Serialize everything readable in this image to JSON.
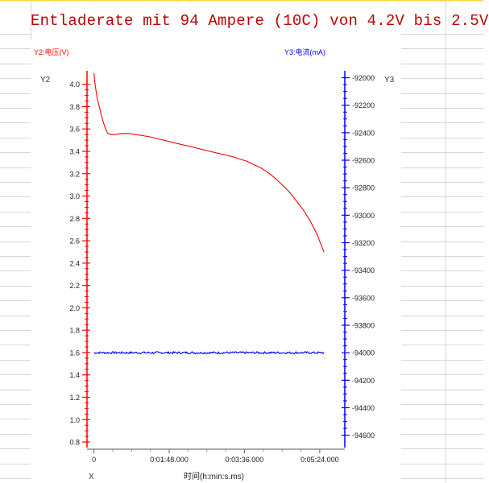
{
  "title": "Entladerate mit 94 Ampere (10C) von 4.2V bis 2.5V",
  "colors": {
    "voltage": "#ff0000",
    "current": "#0000ff",
    "red_axis": "#ff0000",
    "blue_axis": "#0000ff",
    "sheet_grid": "#d6d6d6"
  },
  "chart_data": {
    "type": "line",
    "xlabel": "时间(h:min:s.ms)",
    "x_axis_name": "X",
    "x_ticks": [
      {
        "value": 0,
        "label": "0"
      },
      {
        "value": 108,
        "label": "0:01:48.000"
      },
      {
        "value": 216,
        "label": "0:03:36.000"
      },
      {
        "value": 324,
        "label": "0:05:24.000"
      }
    ],
    "xlim": [
      -10,
      360
    ],
    "y2": {
      "name": "Y2",
      "label": "Y2:电压(V)",
      "ylim": [
        0.75,
        4.12
      ],
      "ticks": [
        0.8,
        1.0,
        1.2,
        1.4,
        1.6,
        1.8,
        2.0,
        2.2,
        2.4,
        2.6,
        2.8,
        3.0,
        3.2,
        3.4,
        3.6,
        3.8,
        4.0
      ]
    },
    "y3": {
      "name": "Y3",
      "label": "Y3:电流(mA)",
      "ylim": [
        -94690,
        -91950
      ],
      "ticks": [
        -92000,
        -92200,
        -92400,
        -92600,
        -92800,
        -93000,
        -93200,
        -93400,
        -93600,
        -93800,
        -94000,
        -94200,
        -94400,
        -94600
      ]
    },
    "series": [
      {
        "name": "Y2:电压(V)",
        "axis": "y2",
        "x": [
          0,
          1,
          2,
          4,
          6,
          8,
          10,
          12,
          15,
          18,
          20,
          25,
          30,
          40,
          50,
          60,
          70,
          80,
          100,
          120,
          140,
          160,
          180,
          200,
          220,
          240,
          250,
          260,
          270,
          280,
          290,
          300,
          310,
          320,
          325,
          330
        ],
        "values": [
          4.1,
          4.03,
          3.98,
          3.9,
          3.84,
          3.79,
          3.74,
          3.69,
          3.63,
          3.58,
          3.56,
          3.55,
          3.55,
          3.56,
          3.56,
          3.55,
          3.54,
          3.53,
          3.5,
          3.47,
          3.44,
          3.41,
          3.38,
          3.35,
          3.31,
          3.25,
          3.21,
          3.16,
          3.1,
          3.04,
          2.96,
          2.88,
          2.78,
          2.66,
          2.58,
          2.5
        ]
      },
      {
        "name": "Y3:电流(mA)",
        "axis": "y3",
        "x": [
          0,
          330
        ],
        "values": [
          -94000,
          -94000
        ],
        "noise": 8
      }
    ]
  }
}
